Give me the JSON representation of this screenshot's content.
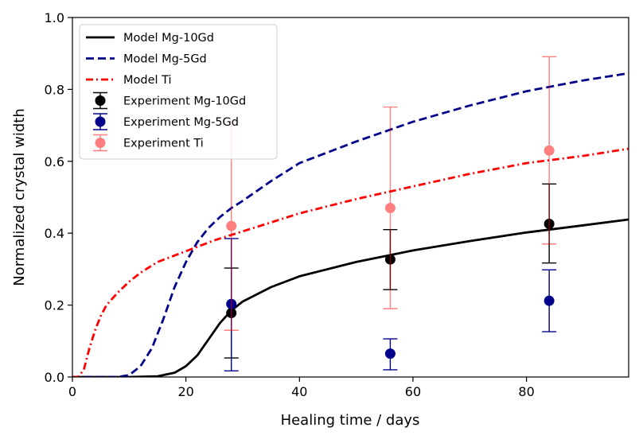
{
  "chart_data": {
    "type": "line",
    "title": "",
    "xlabel": "Healing time / days",
    "ylabel": "Normalized crystal width",
    "xlim": [
      0,
      98
    ],
    "ylim": [
      0,
      1.0
    ],
    "xticks": [
      0,
      20,
      40,
      60,
      80
    ],
    "xtick_labels": [
      "0",
      "20",
      "40",
      "60",
      "80"
    ],
    "yticks": [
      0.0,
      0.2,
      0.4,
      0.6,
      0.8,
      1.0
    ],
    "ytick_labels": [
      "0.0",
      "0.2",
      "0.4",
      "0.6",
      "0.8",
      "1.0"
    ],
    "legend_position": "top-left",
    "model_series": [
      {
        "name": "Model Mg-10Gd",
        "color": "#000000",
        "style": "solid",
        "x": [
          0,
          10,
          15,
          18,
          20,
          22,
          24,
          26,
          28,
          30,
          35,
          40,
          50,
          60,
          70,
          80,
          90,
          98
        ],
        "y": [
          0,
          0,
          0.002,
          0.012,
          0.03,
          0.06,
          0.105,
          0.15,
          0.185,
          0.21,
          0.25,
          0.28,
          0.32,
          0.352,
          0.378,
          0.402,
          0.422,
          0.438
        ]
      },
      {
        "name": "Model Mg-5Gd",
        "color": "#00008b",
        "style": "dashed",
        "x": [
          0,
          8,
          10,
          12,
          14,
          16,
          18,
          20,
          22,
          24,
          26,
          28,
          30,
          35,
          40,
          50,
          60,
          70,
          80,
          90,
          98
        ],
        "y": [
          0,
          0,
          0.005,
          0.03,
          0.08,
          0.16,
          0.25,
          0.32,
          0.375,
          0.415,
          0.445,
          0.47,
          0.49,
          0.545,
          0.595,
          0.655,
          0.71,
          0.755,
          0.795,
          0.825,
          0.845
        ]
      },
      {
        "name": "Model Ti",
        "color": "#ff0000",
        "style": "dashdot",
        "x": [
          0,
          1,
          2,
          3,
          4,
          5,
          6,
          8,
          10,
          12,
          15,
          20,
          25,
          30,
          40,
          50,
          60,
          70,
          80,
          90,
          98
        ],
        "y": [
          0,
          0,
          0.02,
          0.08,
          0.13,
          0.17,
          0.2,
          0.235,
          0.265,
          0.29,
          0.32,
          0.35,
          0.38,
          0.405,
          0.455,
          0.495,
          0.53,
          0.565,
          0.595,
          0.615,
          0.635
        ]
      }
    ],
    "experiment_series": [
      {
        "name": "Experiment Mg-10Gd",
        "color": "#000000",
        "alpha": 1.0,
        "x": [
          28,
          56,
          84
        ],
        "y": [
          0.178,
          0.327,
          0.426
        ],
        "err_low": [
          0.053,
          0.243,
          0.317
        ],
        "err_high": [
          0.303,
          0.41,
          0.537
        ]
      },
      {
        "name": "Experiment Mg-5Gd",
        "color": "#00008b",
        "alpha": 1.0,
        "x": [
          28,
          56,
          84
        ],
        "y": [
          0.203,
          0.065,
          0.212
        ],
        "err_low": [
          0.017,
          0.02,
          0.126
        ],
        "err_high": [
          0.385,
          0.106,
          0.298
        ]
      },
      {
        "name": "Experiment Ti",
        "color": "#ff0000",
        "alpha": 0.5,
        "x": [
          28,
          56,
          84
        ],
        "y": [
          0.42,
          0.47,
          0.63
        ],
        "err_low": [
          0.13,
          0.19,
          0.37
        ],
        "err_high": [
          0.71,
          0.751,
          0.891
        ]
      }
    ]
  }
}
